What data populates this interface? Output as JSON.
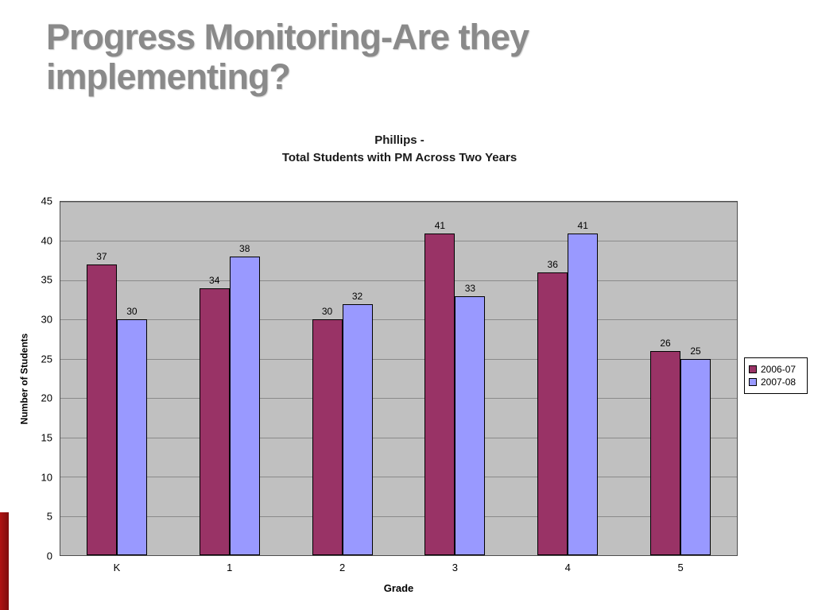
{
  "slide": {
    "title": "Progress Monitoring-Are they implementing?",
    "title_color": "#8a8a8a",
    "accent_bar_color": "#9e1212"
  },
  "chart_data": {
    "type": "bar",
    "title_line1": "Phillips -",
    "title_line2": "Total Students with PM Across Two Years",
    "categories": [
      "K",
      "1",
      "2",
      "3",
      "4",
      "5"
    ],
    "series": [
      {
        "name": "2006-07",
        "color": "#993366",
        "values": [
          37,
          34,
          30,
          41,
          36,
          26
        ]
      },
      {
        "name": "2007-08",
        "color": "#9999FF",
        "values": [
          30,
          38,
          32,
          33,
          41,
          25
        ]
      }
    ],
    "xlabel": "Grade",
    "ylabel": "Number of Students",
    "ylim": [
      0,
      45
    ],
    "ytick_step": 5,
    "grid": true,
    "legend_position": "right",
    "plot_background": "#C0C0C0"
  }
}
